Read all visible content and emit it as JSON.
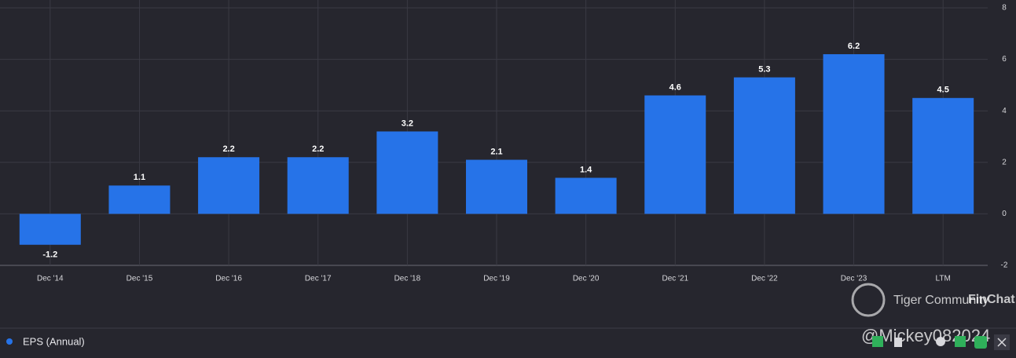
{
  "chart_data": {
    "type": "bar",
    "categories": [
      "Dec '14",
      "Dec '15",
      "Dec '16",
      "Dec '17",
      "Dec '18",
      "Dec '19",
      "Dec '20",
      "Dec '21",
      "Dec '22",
      "Dec '23",
      "LTM"
    ],
    "series": [
      {
        "name": "EPS (Annual)",
        "color": "#2673e8",
        "values": [
          -1.2,
          1.1,
          2.2,
          2.2,
          3.2,
          2.1,
          1.4,
          4.6,
          5.3,
          6.2,
          4.5
        ]
      }
    ],
    "ylim": [
      -2,
      8
    ],
    "yticks": [
      -2,
      0,
      2,
      4,
      6,
      8
    ],
    "grid": true,
    "legend": "bottom-left"
  },
  "watermark": {
    "brand": "Tiger Community",
    "partner": "FinChat",
    "user": "@Mickey082024"
  }
}
